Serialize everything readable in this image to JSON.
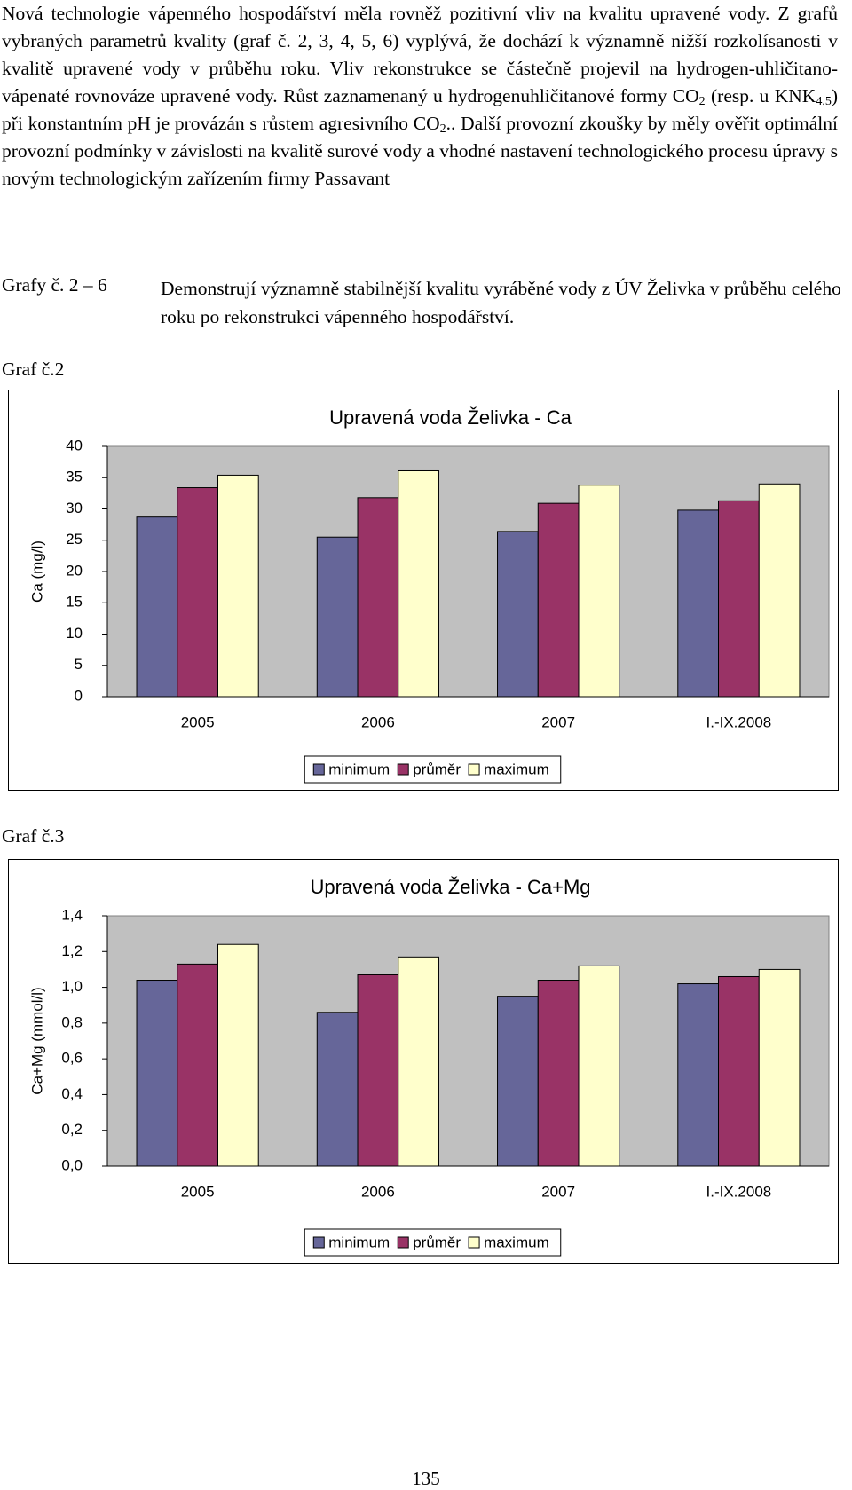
{
  "paragraph": [
    "Nová technologie vápenného hospodářství měla rovněž pozitivní vliv na kvalitu upravené vody. Z grafů vybraných parametrů kvality (graf č. 2, 3, 4, 5, 6) vyplývá, že dochází k významně nižší rozkolísanosti v kvalitě upravené vody v průběhu roku. Vliv rekonstrukce se částečně projevil na hydrogen-uhličitano-vápenaté rovnováze upravené vody. Růst zaznamenaný u hydrogenuhličitanové formy CO",
    "2",
    " (resp. u KNK",
    "4,5",
    ") při konstantním pH je provázán s růstem agresivního CO",
    "2",
    ".. Další provozní zkoušky by měly ověřit optimální provozní podmínky v závislosti na kvalitě surové vody a vhodné nastavení technologického procesu úpravy s novým technologickým zařízením firmy Passavant"
  ],
  "caption": {
    "label": "Grafy č. 2 – 6",
    "text": "Demonstrují významně stabilnější kvalitu vyráběné vody z ÚV Želivka v průběhu celého roku po rekonstrukci vápenného hospodářství."
  },
  "figure_labels": [
    "Graf č.2",
    "Graf č.3"
  ],
  "page_number": "135",
  "chart_data": [
    {
      "type": "bar",
      "title": "Upravená voda  Želivka  - Ca",
      "y_label": "Ca (mg/l)",
      "categories": [
        "2005",
        "2006",
        "2007",
        "I.-IX.2008"
      ],
      "series": [
        {
          "name": "minimum",
          "color": "#666699",
          "values": [
            28.7,
            25.5,
            26.4,
            29.8
          ]
        },
        {
          "name": "průměr",
          "color": "#993366",
          "values": [
            33.4,
            31.8,
            30.9,
            31.3
          ]
        },
        {
          "name": "maximum",
          "color": "#ffffcc",
          "values": [
            35.4,
            36.1,
            33.8,
            34.0
          ]
        }
      ],
      "ylim": [
        0,
        40
      ],
      "yticks": [
        0,
        5,
        10,
        15,
        20,
        25,
        30,
        35,
        40
      ],
      "grid": false,
      "legend": "bottom"
    },
    {
      "type": "bar",
      "title": "Upravená voda  Želivka  - Ca+Mg",
      "y_label": "Ca+Mg (mmol/l)",
      "categories": [
        "2005",
        "2006",
        "2007",
        "I.-IX.2008"
      ],
      "series": [
        {
          "name": "minimum",
          "color": "#666699",
          "values": [
            1.04,
            0.86,
            0.95,
            1.02
          ]
        },
        {
          "name": "průměr",
          "color": "#993366",
          "values": [
            1.13,
            1.07,
            1.04,
            1.06
          ]
        },
        {
          "name": "maximum",
          "color": "#ffffcc",
          "values": [
            1.24,
            1.17,
            1.12,
            1.1
          ]
        }
      ],
      "ylim": [
        0,
        1.4
      ],
      "yticks": [
        {
          "value": 0,
          "label": "0,0"
        },
        {
          "value": 0.2,
          "label": "0,2"
        },
        {
          "value": 0.4,
          "label": "0,4"
        },
        {
          "value": 0.6,
          "label": "0,6"
        },
        {
          "value": 0.8,
          "label": "0,8"
        },
        {
          "value": 1.0,
          "label": "1,0"
        },
        {
          "value": 1.2,
          "label": "1,2"
        },
        {
          "value": 1.4,
          "label": "1,4"
        }
      ],
      "grid": false,
      "legend": "bottom"
    }
  ]
}
